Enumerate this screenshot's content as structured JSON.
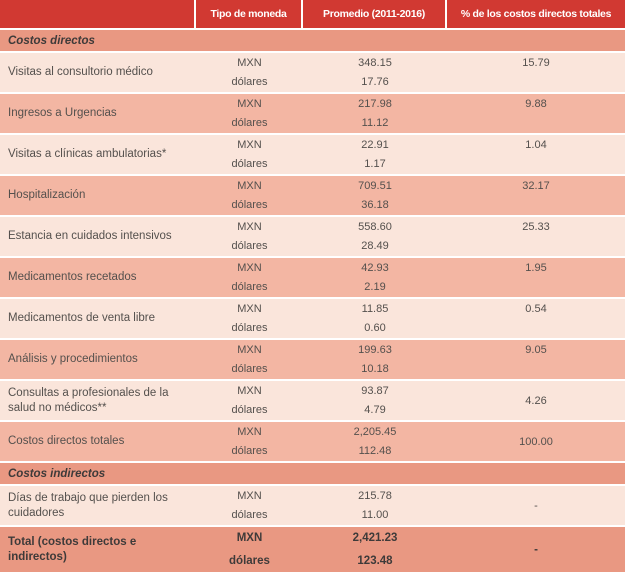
{
  "header": {
    "columns": [
      "",
      "Tipo de moneda",
      "Promedio (2011-2016)",
      "% de los costos directos totales"
    ]
  },
  "currency_labels": {
    "primary": "MXN",
    "secondary": "dólares"
  },
  "colors": {
    "header_red": "#d13932",
    "section_band_salmon": "#e99882",
    "row_salmon": "#f3b6a3",
    "row_light_pink": "#fae5db",
    "header_text": "#ffffff",
    "body_text": "#54504d"
  },
  "rows": [
    {
      "type": "section",
      "label": "Costos directos"
    },
    {
      "type": "data",
      "label": "Visitas al consultorio médico",
      "mxn": "348.15",
      "dolares": "17.76",
      "pct": "15.79",
      "shade": "light",
      "pct_align": "top"
    },
    {
      "type": "data",
      "label": "Ingresos a Urgencias",
      "mxn": "217.98",
      "dolares": "11.12",
      "pct": "9.88",
      "shade": "salmon",
      "pct_align": "top"
    },
    {
      "type": "data",
      "label": "Visitas a clínicas ambulatorias*",
      "mxn": "22.91",
      "dolares": "1.17",
      "pct": "1.04",
      "shade": "light",
      "pct_align": "top"
    },
    {
      "type": "data",
      "label": "Hospitalización",
      "mxn": "709.51",
      "dolares": "36.18",
      "pct": "32.17",
      "shade": "salmon",
      "pct_align": "top"
    },
    {
      "type": "data",
      "label": "Estancia en cuidados intensivos",
      "mxn": "558.60",
      "dolares": "28.49",
      "pct": "25.33",
      "shade": "light",
      "pct_align": "top"
    },
    {
      "type": "data",
      "label": "Medicamentos recetados",
      "mxn": "42.93",
      "dolares": "2.19",
      "pct": "1.95",
      "shade": "salmon",
      "pct_align": "top"
    },
    {
      "type": "data",
      "label": "Medicamentos de venta libre",
      "mxn": "11.85",
      "dolares": "0.60",
      "pct": "0.54",
      "shade": "light",
      "pct_align": "top"
    },
    {
      "type": "data",
      "label": "Análisis y procedimientos",
      "mxn": "199.63",
      "dolares": "10.18",
      "pct": "9.05",
      "shade": "salmon",
      "pct_align": "top"
    },
    {
      "type": "data",
      "label": "Consultas a profesionales de la salud no médicos**",
      "mxn": "93.87",
      "dolares": "4.79",
      "pct": "4.26",
      "shade": "light",
      "pct_align": "center"
    },
    {
      "type": "data",
      "label": "Costos directos totales",
      "mxn": "2,205.45",
      "dolares": "112.48",
      "pct": "100.00",
      "shade": "salmon",
      "pct_align": "center"
    },
    {
      "type": "section",
      "label": "Costos indirectos"
    },
    {
      "type": "data",
      "label": "Días de trabajo que pierden los cuidadores",
      "mxn": "215.78",
      "dolares": "11.00",
      "pct": "-",
      "shade": "light",
      "pct_align": "center"
    },
    {
      "type": "data",
      "label": "Total (costos directos e indirectos)",
      "mxn": "2,421.23",
      "dolares": "123.48",
      "pct": "-",
      "shade": "total",
      "pct_align": "center"
    }
  ]
}
